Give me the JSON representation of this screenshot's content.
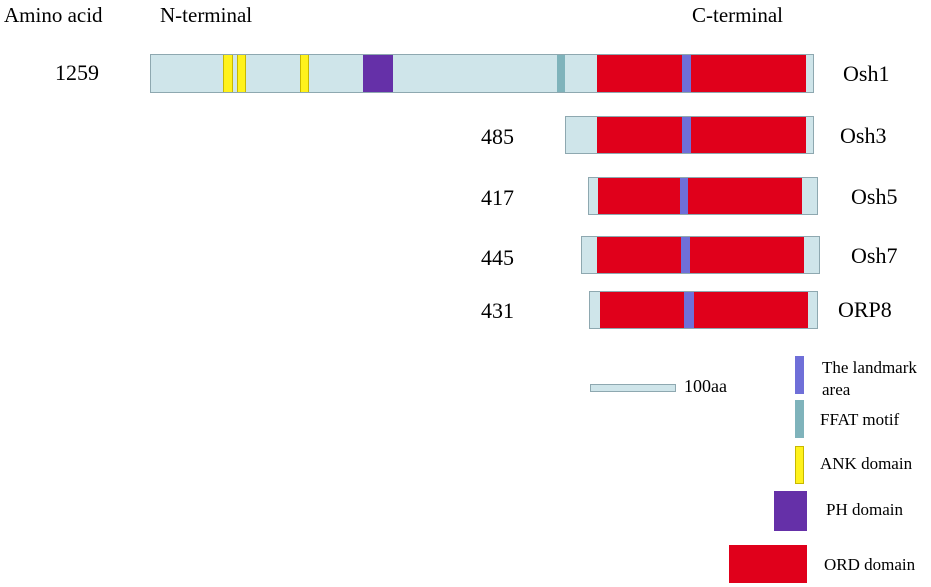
{
  "header": {
    "amino_acid": "Amino acid",
    "n_terminal": "N-terminal",
    "c_terminal": "C-terminal"
  },
  "proteins": [
    {
      "name": "Osh1",
      "length": "1259"
    },
    {
      "name": "Osh3",
      "length": "485"
    },
    {
      "name": "Osh5",
      "length": "417"
    },
    {
      "name": "Osh7",
      "length": "445"
    },
    {
      "name": "ORP8",
      "length": "431"
    }
  ],
  "scale": {
    "label": "100aa"
  },
  "legend": {
    "landmark": "The landmark area",
    "ffat": "FFAT motif",
    "ank": "ANK domain",
    "ph": "PH domain",
    "ord": "ORD domain"
  },
  "colors": {
    "ord": "#e0001b",
    "landmark": "#6f6fd8",
    "ffat": "#7fb3bb",
    "ank": "#fff21c",
    "ph": "#6530a8",
    "backbone": "#cfe5ea"
  }
}
